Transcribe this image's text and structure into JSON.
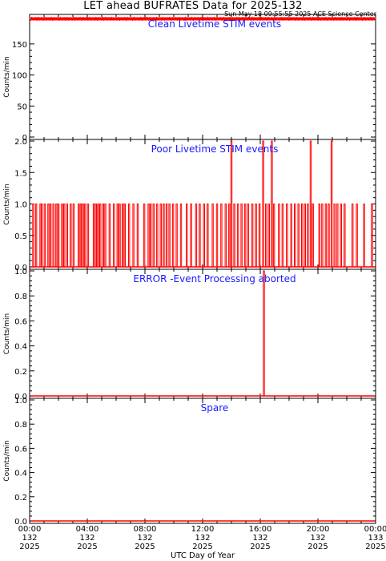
{
  "chart_data": {
    "type": "line",
    "title": "LET ahead BUFRATES Data for 2025-132",
    "subtitle": "Sun May 18 09:55:55 2025 ACE Science Center",
    "xlabel": "UTC Day of Year",
    "xlim_hours": [
      0,
      24
    ],
    "x_ticks": [
      {
        "l1": "00:00",
        "l2": "132",
        "l3": "2025"
      },
      {
        "l1": "04:00",
        "l2": "132",
        "l3": "2025"
      },
      {
        "l1": "08:00",
        "l2": "132",
        "l3": "2025"
      },
      {
        "l1": "12:00",
        "l2": "132",
        "l3": "2025"
      },
      {
        "l1": "16:00",
        "l2": "132",
        "l3": "2025"
      },
      {
        "l1": "20:00",
        "l2": "132",
        "l3": "2025"
      },
      {
        "l1": "00:00",
        "l2": "133",
        "l3": "2025"
      }
    ],
    "series_color": "#ff0000",
    "panels": [
      {
        "name": "Clean Livetime STIM events",
        "ylabel": "Counts/min",
        "ylim": [
          0,
          195
        ],
        "yticks": [
          0,
          50,
          100,
          150
        ],
        "ytick_labels": [
          "0",
          "50",
          "100",
          "150"
        ],
        "pattern": "band",
        "band": [
          188,
          193
        ]
      },
      {
        "name": "Poor Livetime STIM events",
        "ylabel": "Counts/min",
        "ylim": [
          0,
          2
        ],
        "yticks": [
          0,
          0.5,
          1,
          1.5,
          2
        ],
        "ytick_labels": [
          "0.0",
          "0.5",
          "1.0",
          "1.5",
          "2.0"
        ],
        "pattern": "spikes",
        "spikes": [
          [
            0.25,
            1
          ],
          [
            0.45,
            1
          ],
          [
            0.75,
            1
          ],
          [
            0.85,
            1
          ],
          [
            1.05,
            1
          ],
          [
            1.3,
            1
          ],
          [
            1.45,
            1
          ],
          [
            1.65,
            1
          ],
          [
            1.85,
            1
          ],
          [
            2.0,
            1
          ],
          [
            2.25,
            1
          ],
          [
            2.4,
            1
          ],
          [
            2.6,
            1
          ],
          [
            2.85,
            1
          ],
          [
            3.05,
            1
          ],
          [
            3.4,
            1
          ],
          [
            3.55,
            1
          ],
          [
            3.7,
            1
          ],
          [
            3.85,
            1
          ],
          [
            4.05,
            1
          ],
          [
            4.45,
            1
          ],
          [
            4.6,
            1
          ],
          [
            4.75,
            1
          ],
          [
            4.9,
            1
          ],
          [
            5.1,
            1
          ],
          [
            5.25,
            1
          ],
          [
            5.55,
            1
          ],
          [
            5.85,
            1
          ],
          [
            6.1,
            1
          ],
          [
            6.25,
            1
          ],
          [
            6.45,
            1
          ],
          [
            6.6,
            1
          ],
          [
            6.9,
            1
          ],
          [
            7.2,
            1
          ],
          [
            7.5,
            1
          ],
          [
            7.95,
            1
          ],
          [
            8.25,
            1
          ],
          [
            8.4,
            1
          ],
          [
            8.6,
            1
          ],
          [
            8.85,
            1
          ],
          [
            9.1,
            1
          ],
          [
            9.3,
            1
          ],
          [
            9.5,
            1
          ],
          [
            9.7,
            1
          ],
          [
            9.95,
            1
          ],
          [
            10.2,
            1
          ],
          [
            10.5,
            1
          ],
          [
            10.9,
            1
          ],
          [
            11.2,
            1
          ],
          [
            11.55,
            1
          ],
          [
            11.8,
            1
          ],
          [
            12.1,
            1
          ],
          [
            12.35,
            1
          ],
          [
            12.7,
            1
          ],
          [
            13.0,
            1
          ],
          [
            13.3,
            1
          ],
          [
            13.6,
            1
          ],
          [
            13.85,
            1
          ],
          [
            14.0,
            2
          ],
          [
            14.2,
            1
          ],
          [
            14.45,
            1
          ],
          [
            14.7,
            1
          ],
          [
            14.95,
            1
          ],
          [
            15.15,
            1
          ],
          [
            15.45,
            1
          ],
          [
            15.7,
            1
          ],
          [
            15.95,
            1
          ],
          [
            16.2,
            2
          ],
          [
            16.4,
            1
          ],
          [
            16.6,
            1
          ],
          [
            16.8,
            2
          ],
          [
            16.95,
            1
          ],
          [
            17.3,
            1
          ],
          [
            17.55,
            1
          ],
          [
            17.85,
            1
          ],
          [
            18.15,
            1
          ],
          [
            18.4,
            1
          ],
          [
            18.65,
            1
          ],
          [
            18.9,
            1
          ],
          [
            19.1,
            1
          ],
          [
            19.3,
            1
          ],
          [
            19.5,
            2
          ],
          [
            19.65,
            1
          ],
          [
            20.1,
            1
          ],
          [
            20.3,
            1
          ],
          [
            20.55,
            1
          ],
          [
            20.75,
            1
          ],
          [
            20.95,
            2
          ],
          [
            21.15,
            1
          ],
          [
            21.35,
            1
          ],
          [
            21.6,
            1
          ],
          [
            21.85,
            1
          ],
          [
            22.4,
            1
          ],
          [
            22.7,
            1
          ],
          [
            23.2,
            1
          ],
          [
            23.75,
            1
          ]
        ]
      },
      {
        "name": "ERROR -Event Processing aborted",
        "ylabel": "Counts/min",
        "ylim": [
          0,
          1
        ],
        "yticks": [
          0,
          0.2,
          0.4,
          0.6,
          0.8,
          1.0
        ],
        "ytick_labels": [
          "0.0",
          "0.2",
          "0.4",
          "0.6",
          "0.8",
          "1.0"
        ],
        "pattern": "spikes",
        "spikes": [
          [
            16.25,
            1
          ]
        ]
      },
      {
        "name": "Spare",
        "ylabel": "Counts/min",
        "ylim": [
          0,
          1
        ],
        "yticks": [
          0,
          0.2,
          0.4,
          0.6,
          0.8,
          1.0
        ],
        "ytick_labels": [
          "0.0",
          "0.2",
          "0.4",
          "0.6",
          "0.8",
          "1.0"
        ],
        "pattern": "flat",
        "spikes": []
      }
    ]
  }
}
